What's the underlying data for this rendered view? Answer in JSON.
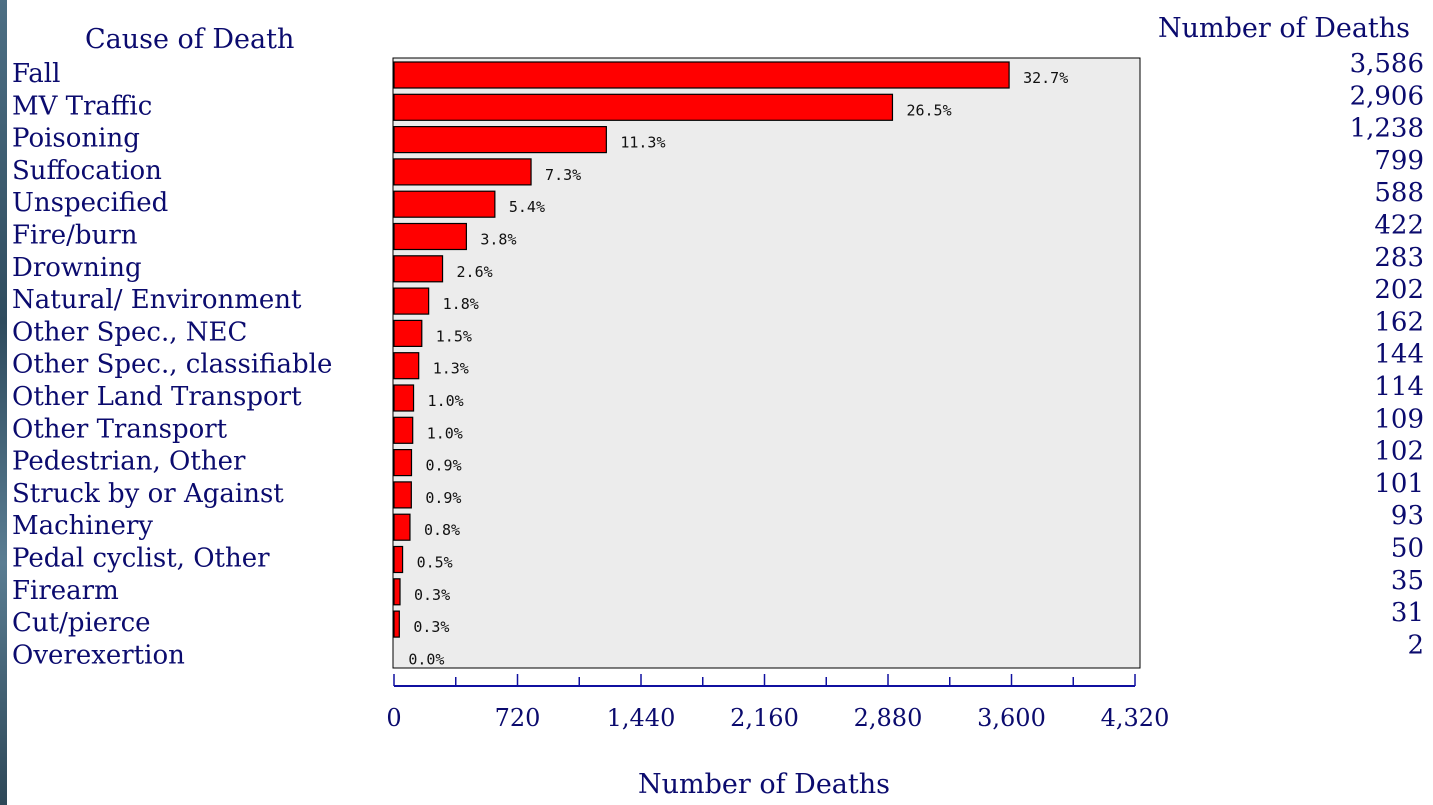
{
  "chart_data": {
    "type": "bar",
    "orientation": "horizontal",
    "left_header": "Cause of Death",
    "right_header": "Number of Deaths",
    "xlabel": "Number of Deaths",
    "xlim": [
      0,
      4320
    ],
    "x_ticks": [
      "0",
      "720",
      "1,440",
      "2,160",
      "2,880",
      "3,600",
      "4,320"
    ],
    "x_tick_values": [
      0,
      720,
      1440,
      2160,
      2880,
      3600,
      4320
    ],
    "x_minor_step": 360,
    "grid": false,
    "plot_background": "#ececec",
    "bar_color": "#ff0000",
    "text_color": "#0b0b6e",
    "categories": [
      "Fall",
      "MV Traffic",
      "Poisoning",
      "Suffocation",
      "Unspecified",
      "Fire/burn",
      "Drowning",
      "Natural/ Environment",
      "Other Spec., NEC",
      "Other Spec., classifiable",
      "Other Land Transport",
      "Other Transport",
      "Pedestrian, Other",
      "Struck by or Against",
      "Machinery",
      "Pedal cyclist, Other",
      "Firearm",
      "Cut/pierce",
      "Overexertion"
    ],
    "values": [
      3586,
      2906,
      1238,
      799,
      588,
      422,
      283,
      202,
      162,
      144,
      114,
      109,
      102,
      101,
      93,
      50,
      35,
      31,
      2
    ],
    "value_labels": [
      "3,586",
      "2,906",
      "1,238",
      "799",
      "588",
      "422",
      "283",
      "202",
      "162",
      "144",
      "114",
      "109",
      "102",
      "101",
      "93",
      "50",
      "35",
      "31",
      "2"
    ],
    "percent_labels": [
      "32.7%",
      "26.5%",
      "11.3%",
      "7.3%",
      "5.4%",
      "3.8%",
      "2.6%",
      "1.8%",
      "1.5%",
      "1.3%",
      "1.0%",
      "1.0%",
      "0.9%",
      "0.9%",
      "0.8%",
      "0.5%",
      "0.3%",
      "0.3%",
      "0.0%"
    ]
  }
}
